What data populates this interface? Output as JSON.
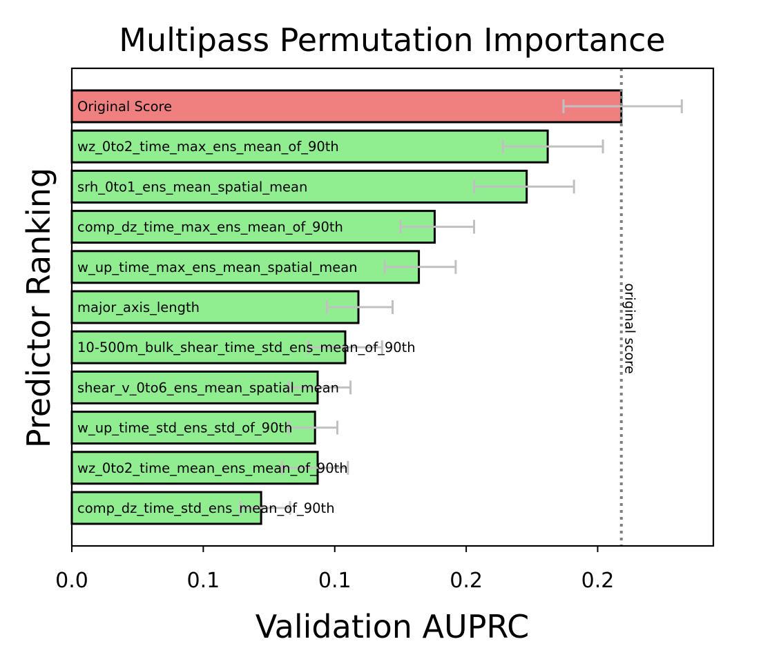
{
  "chart_data": {
    "type": "bar",
    "orientation": "horizontal",
    "title": "Multipass Permutation Importance",
    "xlabel": "Validation AUPRC",
    "ylabel": "Predictor Ranking",
    "xlim": [
      0.0,
      0.244
    ],
    "x_ticks": [
      0.0,
      0.05,
      0.1,
      0.15,
      0.2
    ],
    "x_tick_labels": [
      "0.0",
      "0.1",
      "0.1",
      "0.2",
      "0.2"
    ],
    "grid": false,
    "reference_line": {
      "value": 0.209,
      "label": "original score",
      "style": "dotted",
      "color": "#808080"
    },
    "colors": {
      "original": "#f08080",
      "predictor": "#90ee90",
      "edge": "#000000",
      "error": "#c0c0c0"
    },
    "bars": [
      {
        "label": "Original Score",
        "value": 0.209,
        "err_low": 0.187,
        "err_high": 0.232,
        "kind": "original"
      },
      {
        "label": "wz_0to2_time_max_ens_mean_of_90th",
        "value": 0.181,
        "err_low": 0.164,
        "err_high": 0.202,
        "kind": "predictor"
      },
      {
        "label": "srh_0to1_ens_mean_spatial_mean",
        "value": 0.173,
        "err_low": 0.153,
        "err_high": 0.191,
        "kind": "predictor"
      },
      {
        "label": "comp_dz_time_max_ens_mean_of_90th",
        "value": 0.138,
        "err_low": 0.125,
        "err_high": 0.153,
        "kind": "predictor"
      },
      {
        "label": "w_up_time_max_ens_mean_spatial_mean",
        "value": 0.132,
        "err_low": 0.119,
        "err_high": 0.146,
        "kind": "predictor"
      },
      {
        "label": "major_axis_length",
        "value": 0.109,
        "err_low": 0.097,
        "err_high": 0.122,
        "kind": "predictor"
      },
      {
        "label": "10-500m_bulk_shear_time_std_ens_mean_of_90th",
        "value": 0.104,
        "err_low": 0.09,
        "err_high": 0.118,
        "kind": "predictor"
      },
      {
        "label": "shear_v_0to6_ens_mean_spatial_mean",
        "value": 0.0935,
        "err_low": 0.0825,
        "err_high": 0.106,
        "kind": "predictor"
      },
      {
        "label": "w_up_time_std_ens_std_of_90th",
        "value": 0.0925,
        "err_low": 0.0825,
        "err_high": 0.101,
        "kind": "predictor"
      },
      {
        "label": "wz_0to2_time_mean_ens_mean_of_90th",
        "value": 0.0935,
        "err_low": 0.08,
        "err_high": 0.105,
        "kind": "predictor"
      },
      {
        "label": "comp_dz_time_std_ens_mean_of_90th",
        "value": 0.072,
        "err_low": 0.064,
        "err_high": 0.083,
        "kind": "predictor"
      }
    ]
  }
}
